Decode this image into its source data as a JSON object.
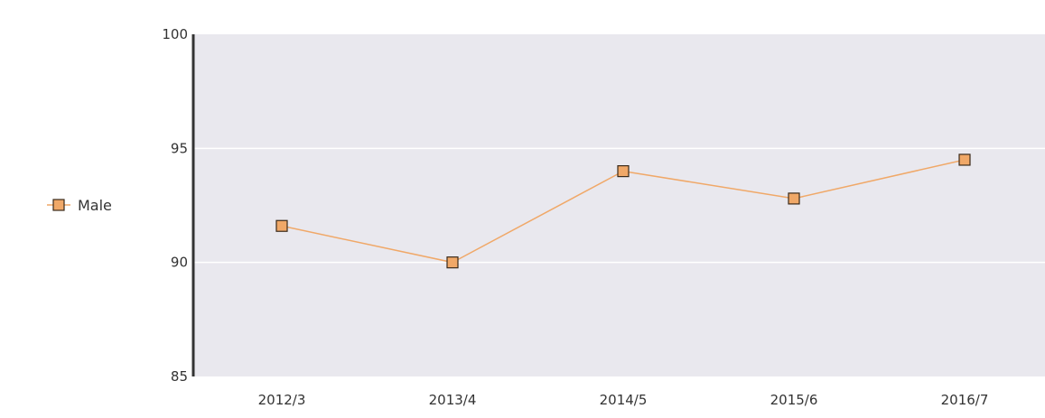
{
  "chart_data": {
    "type": "line",
    "categories": [
      "2012/3",
      "2013/4",
      "2014/5",
      "2015/6",
      "2016/7"
    ],
    "series": [
      {
        "name": "Male",
        "values": [
          91.6,
          90.0,
          94.0,
          92.8,
          94.5
        ]
      }
    ],
    "yticks": [
      85,
      90,
      95,
      100
    ],
    "ylim": [
      85,
      100
    ],
    "title": "",
    "xlabel": "",
    "ylabel": "",
    "grid": true,
    "legend_position": "left",
    "colors": {
      "line": "#f0a868",
      "marker_fill": "#f0a868",
      "marker_stroke": "#3a2a1a",
      "plot_background": "#e9e8ee",
      "gridline": "#ffffff",
      "axis": "#333333"
    }
  }
}
